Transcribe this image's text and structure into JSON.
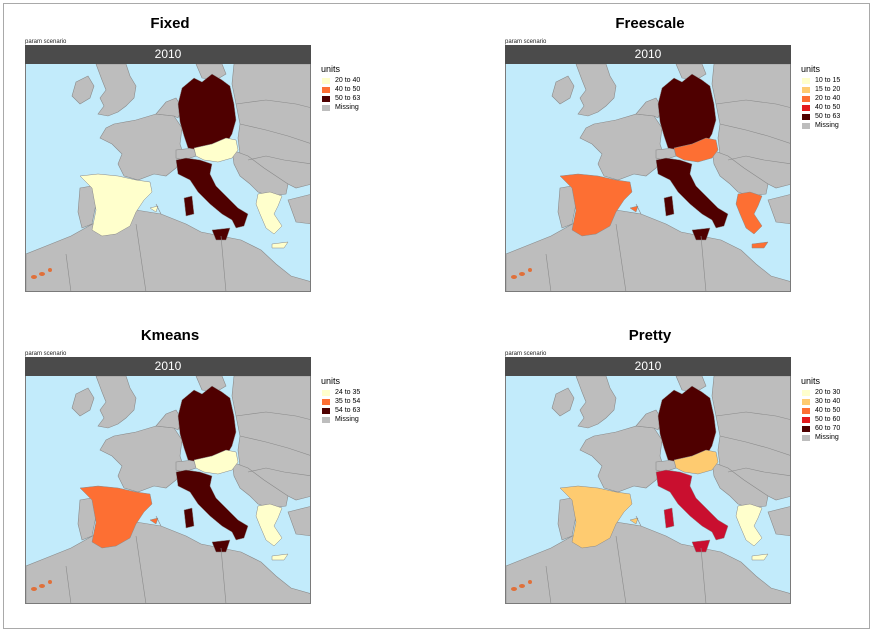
{
  "common": {
    "param_label": "param scenario",
    "year": "2010",
    "legend_title": "units",
    "colors": {
      "sea": "#c2ebfb",
      "land": "#bdbdbd",
      "border": "#8a8a8a"
    }
  },
  "panels": [
    {
      "title": "Fixed",
      "legend": [
        {
          "label": "20 to 40",
          "color": "#ffffcc"
        },
        {
          "label": "40 to 50",
          "color": "#fd6f33"
        },
        {
          "label": "50 to 63",
          "color": "#4f0000"
        },
        {
          "label": "Missing",
          "color": "#bdbdbd"
        }
      ],
      "countries": {
        "germany": "#4f0000",
        "italy": "#4f0000",
        "austria": "#ffffcc",
        "spain": "#ffffcc",
        "greece": "#ffffcc"
      }
    },
    {
      "title": "Freescale",
      "legend": [
        {
          "label": "10 to 15",
          "color": "#ffffcc"
        },
        {
          "label": "15 to 20",
          "color": "#fecb70"
        },
        {
          "label": "20 to 40",
          "color": "#fd6f33"
        },
        {
          "label": "40 to 50",
          "color": "#e31a1c"
        },
        {
          "label": "50 to 63",
          "color": "#4f0000"
        },
        {
          "label": "Missing",
          "color": "#bdbdbd"
        }
      ],
      "countries": {
        "germany": "#4f0000",
        "italy": "#4f0000",
        "austria": "#fd6f33",
        "spain": "#fd6f33",
        "greece": "#fd6f33"
      }
    },
    {
      "title": "Kmeans",
      "legend": [
        {
          "label": "24 to 35",
          "color": "#ffffcc"
        },
        {
          "label": "35 to 54",
          "color": "#fd6f33"
        },
        {
          "label": "54 to 63",
          "color": "#4f0000"
        },
        {
          "label": "Missing",
          "color": "#bdbdbd"
        }
      ],
      "countries": {
        "germany": "#4f0000",
        "italy": "#4f0000",
        "austria": "#ffffcc",
        "spain": "#fd6f33",
        "greece": "#ffffcc"
      }
    },
    {
      "title": "Pretty",
      "legend": [
        {
          "label": "20 to 30",
          "color": "#ffffcc"
        },
        {
          "label": "30 to 40",
          "color": "#fecb70"
        },
        {
          "label": "40 to 50",
          "color": "#fd6f33"
        },
        {
          "label": "50 to 60",
          "color": "#e31a1c"
        },
        {
          "label": "60 to 70",
          "color": "#4f0000"
        },
        {
          "label": "Missing",
          "color": "#bdbdbd"
        }
      ],
      "countries": {
        "germany": "#4f0000",
        "italy": "#c90f2f",
        "austria": "#fecb70",
        "spain": "#fecb70",
        "greece": "#ffffcc"
      }
    }
  ]
}
